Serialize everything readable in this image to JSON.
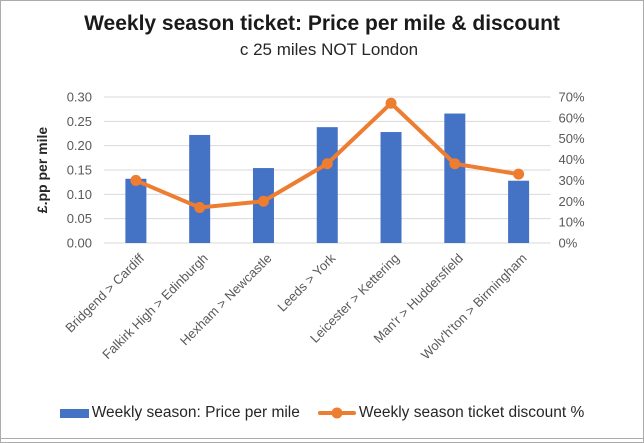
{
  "chart": {
    "title": "Weekly season ticket: Price per mile & discount",
    "subtitle": "c 25 miles NOT London"
  },
  "chart_data": {
    "type": "combo",
    "subtypes": [
      "bar",
      "line"
    ],
    "categories": [
      "Bridgend > Cardiff",
      "Falkirk High > Edinburgh",
      "Hexham > Newcastle",
      "Leeds > York",
      "Leicester > Kettering",
      "Man'r > Huddersfield",
      "Wolv'h'ton > Birmingham"
    ],
    "series": [
      {
        "name": "Weekly season: Price per mile",
        "type": "bar",
        "axis": "left",
        "color": "#4472C4",
        "values": [
          0.132,
          0.222,
          0.154,
          0.238,
          0.228,
          0.266,
          0.128
        ]
      },
      {
        "name": "Weekly season ticket discount %",
        "type": "line",
        "axis": "right",
        "color": "#ED7D31",
        "unit": "%",
        "values": [
          30,
          17,
          20,
          38,
          67,
          38,
          33
        ]
      }
    ],
    "left_axis": {
      "title": "£.pp per mile",
      "min": 0,
      "max": 0.3,
      "step": 0.05,
      "tick_labels": [
        "0.00",
        "0.05",
        "0.10",
        "0.15",
        "0.20",
        "0.25",
        "0.30"
      ]
    },
    "right_axis": {
      "min": 0,
      "max": 70,
      "step": 10,
      "tick_labels": [
        "0%",
        "10%",
        "20%",
        "30%",
        "40%",
        "50%",
        "60%",
        "70%"
      ]
    },
    "grid": true,
    "gridline_color": "#d9d9d9",
    "legend_position": "bottom",
    "category_label_rotation_deg": -45
  }
}
